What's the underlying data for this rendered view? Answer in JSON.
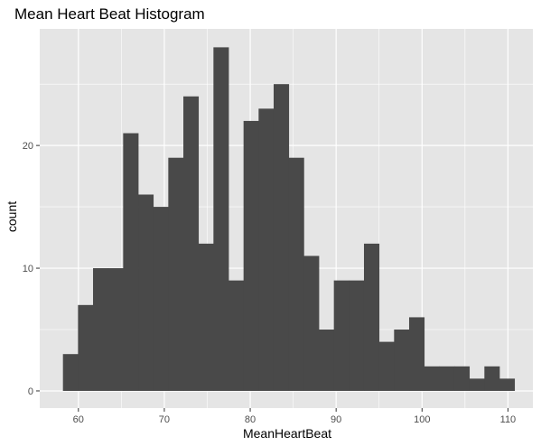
{
  "chart_data": {
    "type": "bar",
    "title": "Mean Heart Beat Histogram",
    "xlabel": "MeanHeartBeat",
    "ylabel": "count",
    "xlim": [
      55.5,
      112.9
    ],
    "ylim": [
      -1.4,
      29.5
    ],
    "x_ticks": [
      60,
      70,
      80,
      90,
      100,
      110
    ],
    "y_ticks": [
      0,
      10,
      20
    ],
    "bin_start": 58.2,
    "bin_width": 1.752,
    "values": [
      3,
      7,
      10,
      10,
      21,
      16,
      15,
      19,
      24,
      12,
      28,
      9,
      22,
      23,
      25,
      19,
      11,
      5,
      9,
      9,
      12,
      4,
      5,
      6,
      2,
      2,
      2,
      1,
      2,
      1
    ],
    "panel_background": "#e5e5e5",
    "grid": true,
    "grid_color": "#ffffff",
    "bar_color": "#494949"
  }
}
